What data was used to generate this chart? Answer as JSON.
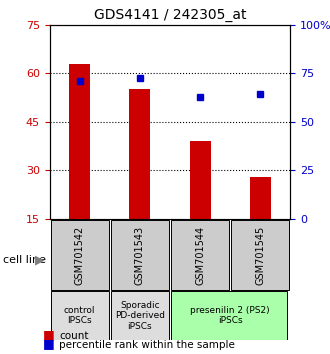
{
  "title": "GDS4141 / 242305_at",
  "samples": [
    "GSM701542",
    "GSM701543",
    "GSM701544",
    "GSM701545"
  ],
  "counts": [
    63.0,
    55.0,
    39.0,
    28.0
  ],
  "percentiles": [
    57.5,
    58.5,
    52.5,
    53.5
  ],
  "ylim_left": [
    15,
    75
  ],
  "ylim_right": [
    0,
    100
  ],
  "yticks_left": [
    15,
    30,
    45,
    60,
    75
  ],
  "yticks_right": [
    0,
    25,
    50,
    75,
    100
  ],
  "bar_color": "#cc0000",
  "dot_color": "#0000cc",
  "bar_width": 0.35,
  "categories": [
    {
      "label": "control\nIPSCs",
      "start": 0,
      "end": 1,
      "color": "#dddddd"
    },
    {
      "label": "Sporadic\nPD-derived\niPSCs",
      "start": 1,
      "end": 2,
      "color": "#dddddd"
    },
    {
      "label": "presenilin 2 (PS2)\niPSCs",
      "start": 2,
      "end": 4,
      "color": "#aaffaa"
    }
  ],
  "legend_count_label": "count",
  "legend_pct_label": "percentile rank within the sample",
  "cell_line_label": "cell line"
}
